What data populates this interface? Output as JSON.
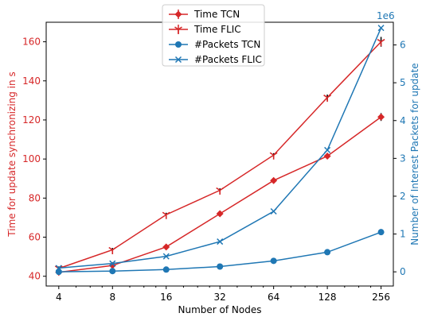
{
  "chart_data": {
    "type": "line",
    "x_label": "Number of Nodes",
    "x_ticks": [
      "4",
      "8",
      "16",
      "32",
      "64",
      "128",
      "256"
    ],
    "x": [
      4,
      8,
      16,
      32,
      64,
      128,
      256
    ],
    "x_scale": "log2",
    "y_left": {
      "label": "Time for update synchronizing  in s",
      "ticks": [
        40,
        60,
        80,
        100,
        120,
        140,
        160
      ],
      "range": [
        35,
        170
      ],
      "color": "#d62728"
    },
    "y_right": {
      "label": "Number of Interest Packets for update",
      "ticks": [
        0,
        1,
        2,
        3,
        4,
        5,
        6
      ],
      "range": [
        -0.375,
        6.6
      ],
      "offset_text": "1e6",
      "color": "#1f77b4"
    },
    "series": [
      {
        "name": "Time TCN",
        "axis": "left",
        "color": "#d62728",
        "marker": "diamond",
        "values": [
          42,
          45.5,
          55,
          72,
          89,
          101.5,
          121.5
        ],
        "errors": [
          1,
          1,
          1,
          1,
          1,
          1,
          2
        ]
      },
      {
        "name": "Time FLIC",
        "axis": "left",
        "color": "#d62728",
        "marker": "tri_down",
        "values": [
          44,
          53.5,
          71.5,
          84,
          102,
          131.5,
          160
        ],
        "errors": [
          1,
          1,
          1,
          1,
          1,
          1.5,
          2.5
        ]
      },
      {
        "name": "#Packets TCN",
        "axis": "right",
        "color": "#1f77b4",
        "marker": "circle",
        "values": [
          0,
          0.02,
          0.06,
          0.14,
          0.29,
          0.52,
          1.05
        ]
      },
      {
        "name": "#Packets FLIC",
        "axis": "right",
        "color": "#1f77b4",
        "marker": "x",
        "values": [
          0.1,
          0.22,
          0.41,
          0.8,
          1.6,
          3.22,
          6.45
        ]
      }
    ]
  }
}
